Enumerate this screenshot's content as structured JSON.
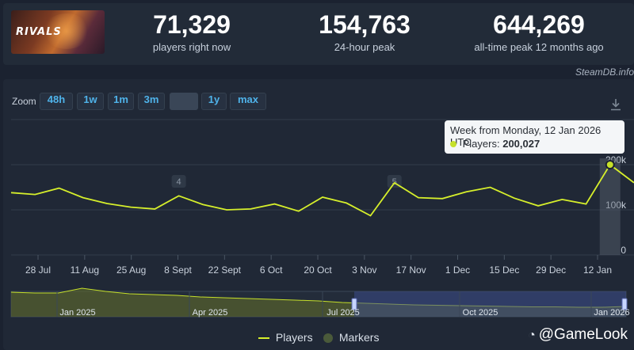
{
  "stats": {
    "current": {
      "value": "71,329",
      "label": "players right now"
    },
    "peak24": {
      "value": "154,763",
      "label": "24-hour peak"
    },
    "alltime": {
      "value": "644,269",
      "label": "all-time peak 12 months ago"
    }
  },
  "game": {
    "logo_text": "RIVALS"
  },
  "source": "SteamDB.info",
  "zoom": {
    "label": "Zoom",
    "buttons": [
      "48h",
      "1w",
      "1m",
      "3m",
      "",
      "1y",
      "max"
    ],
    "selected_index": 4
  },
  "tooltip": {
    "title": "Week from Monday, 12 Jan 2026 UTC",
    "series_label": "Players:",
    "series_value": "200,027"
  },
  "legend": {
    "players": "Players",
    "markers": "Markers"
  },
  "watermark": "@GameLook",
  "colors": {
    "line": "#d6ef2b",
    "accent": "#4fb3ea",
    "marker": "#4a5a3a"
  },
  "chart_data": {
    "type": "line",
    "x_ticks": [
      "28 Jul",
      "11 Aug",
      "25 Aug",
      "8 Sept",
      "22 Sept",
      "6 Oct",
      "20 Oct",
      "3 Nov",
      "17 Nov",
      "1 Dec",
      "15 Dec",
      "29 Dec",
      "12 Jan"
    ],
    "y_ticks": [
      "0",
      "100k",
      "200k"
    ],
    "ylim": [
      0,
      300000
    ],
    "series": [
      {
        "name": "Players",
        "values": [
          138000,
          134000,
          148000,
          127000,
          114000,
          106000,
          102000,
          131000,
          112000,
          100000,
          102000,
          113000,
          97000,
          128000,
          115000,
          87000,
          160000,
          127000,
          125000,
          140000,
          150000,
          126000,
          109000,
          123000,
          113000,
          200027,
          160000
        ]
      }
    ],
    "annotations": [
      {
        "label": "4",
        "x_index": 7
      },
      {
        "label": "5",
        "x_index": 16
      }
    ],
    "highlight_index": 25,
    "navigator": {
      "labels": [
        "Jan 2025",
        "Apr 2025",
        "Jul 2025",
        "Oct 2025",
        "Jan 2026"
      ],
      "values": [
        62,
        60,
        60,
        72,
        64,
        58,
        56,
        54,
        50,
        48,
        46,
        44,
        42,
        40,
        36,
        34,
        32,
        30,
        29,
        28,
        27,
        26,
        25,
        25,
        24,
        24,
        26
      ]
    }
  }
}
